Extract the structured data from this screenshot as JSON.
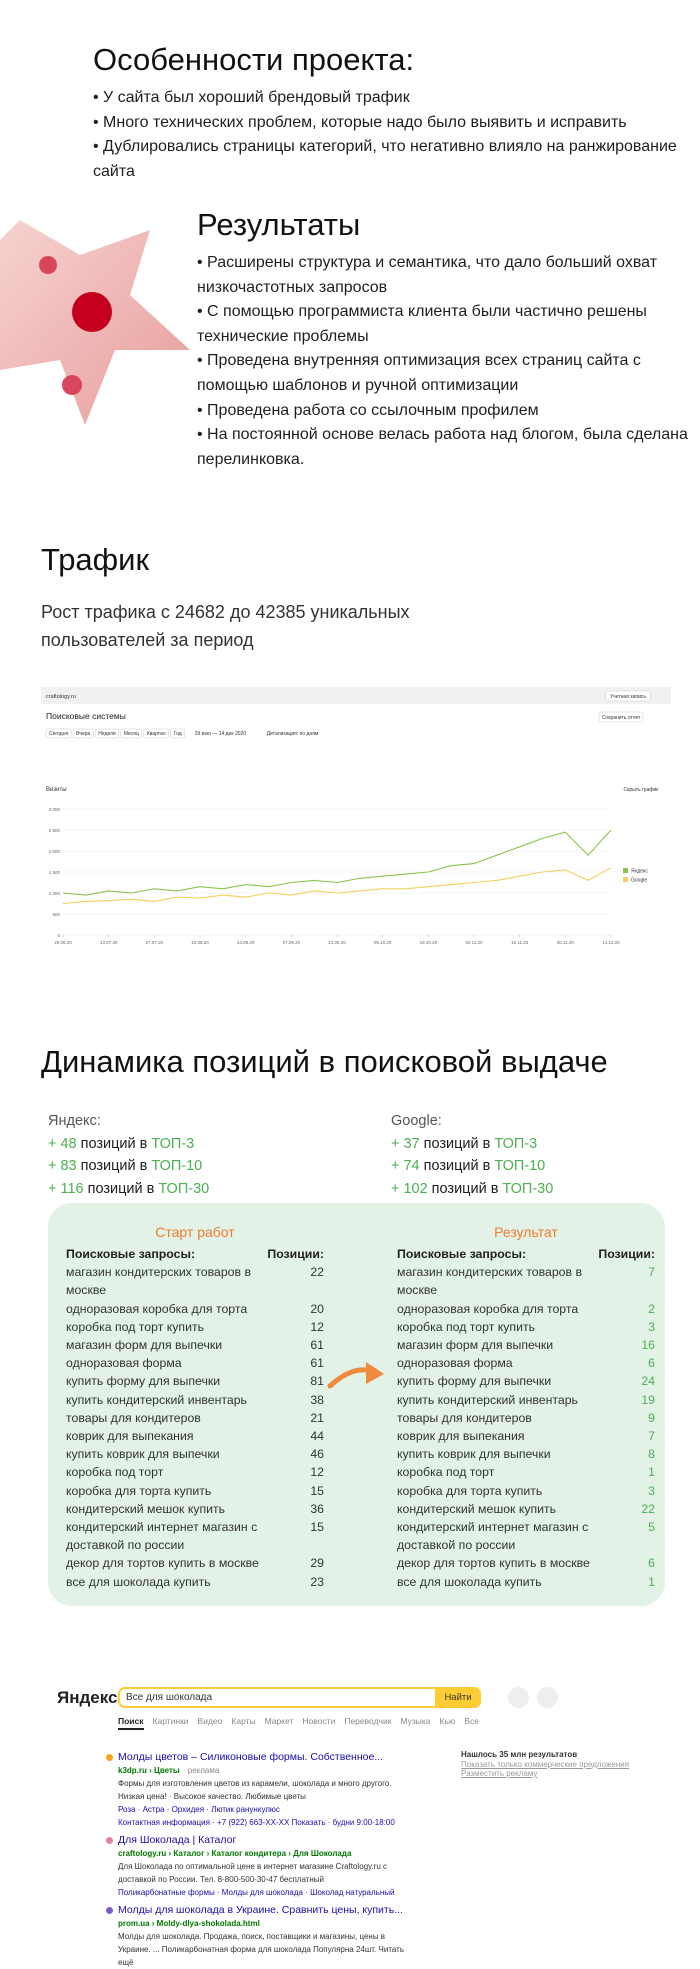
{
  "features": {
    "title": "Особенности проекта:",
    "items": [
      "• У сайта был хороший брендовый трафик",
      "• Много технических проблем, которые надо было выявить и исправить",
      "• Дублировались страницы категорий, что негативно влияло на ранжирование сайта"
    ]
  },
  "results": {
    "title": "Результаты",
    "items": [
      "• Расширены структура и семантика, что дало больший охват низкочастотных запросов",
      "• С помощью программиста клиента были частично решены технические проблемы",
      "• Проведена внутренняя оптимизация всех страниц сайта с помощью шаблонов и ручной оптимизации",
      "• Проведена работа со ссылочным профилем",
      "• На постоянной основе велась работа над блогом, была сделана перелинковка."
    ]
  },
  "traffic": {
    "title": "Трафик",
    "text": "Рост трафика с 24682 до 42385 уникальных пользователей за период"
  },
  "metrica": {
    "site": "craftology.ru",
    "account": "Учетная запись",
    "report": "Поисковые системы",
    "save": "Сохранить отчет",
    "periods": [
      "Сегодня",
      "Вчера",
      "Неделя",
      "Месяц",
      "Квартал",
      "Год"
    ],
    "range": "29 июн — 14 дек 2020",
    "detail": "Детализация: по дням",
    "metric": "Визиты",
    "hide": "Скрыть график",
    "chart_data": {
      "type": "line",
      "x": [
        "29.06.20",
        "06.07.20",
        "13.07.20",
        "20.07.20",
        "27.07.20",
        "03.08.20",
        "10.08.20",
        "17.08.20",
        "24.08.20",
        "31.08.20",
        "07.09.20",
        "14.09.20",
        "21.09.20",
        "28.09.20",
        "05.10.20",
        "12.10.20",
        "19.10.20",
        "26.10.20",
        "02.11.20",
        "09.11.20",
        "16.11.20",
        "23.11.20",
        "30.11.20",
        "07.12.20",
        "14.12.20"
      ],
      "series": [
        {
          "name": "Яндекс",
          "color": "#86c64a",
          "values": [
            1000,
            950,
            1050,
            1000,
            1100,
            1050,
            1150,
            1100,
            1200,
            1150,
            1250,
            1300,
            1250,
            1350,
            1400,
            1450,
            1500,
            1650,
            1700,
            1900,
            2100,
            2300,
            2450,
            1900,
            2500
          ]
        },
        {
          "name": "Google",
          "color": "#f4cf5e",
          "values": [
            750,
            800,
            820,
            850,
            800,
            900,
            880,
            950,
            900,
            1000,
            950,
            1050,
            1000,
            1050,
            1100,
            1100,
            1150,
            1200,
            1250,
            1300,
            1400,
            1500,
            1550,
            1300,
            1600
          ]
        }
      ],
      "ylim": [
        0,
        3000
      ],
      "yticks": [
        0,
        500,
        {
          "value": 1000,
          "label": "1 000"
        },
        {
          "value": 1500,
          "label": "1 500"
        },
        {
          "value": 2000,
          "label": "2 000"
        },
        {
          "value": 2500,
          "label": "2 500"
        },
        {
          "value": 3000,
          "label": "3 000"
        }
      ],
      "grid": true
    }
  },
  "dynamics": {
    "title": "Динамика позиций в поисковой выдаче",
    "engines": [
      {
        "name": "Яндекс:",
        "items": [
          {
            "sign": "+",
            "count": 48,
            "text": "позиций в",
            "top": "ТОП-3"
          },
          {
            "sign": "+",
            "count": 83,
            "text": "позиций в",
            "top": "ТОП-10"
          },
          {
            "sign": "+",
            "count": 116,
            "text": "позиций в",
            "top": "ТОП-30"
          }
        ]
      },
      {
        "name": "Google:",
        "items": [
          {
            "sign": "+",
            "count": 37,
            "text": "позиций в",
            "top": "ТОП-3"
          },
          {
            "sign": "+",
            "count": 74,
            "text": "позиций в",
            "top": "ТОП-10"
          },
          {
            "sign": "+",
            "count": 102,
            "text": "позиций в",
            "top": "ТОП-30"
          }
        ]
      }
    ],
    "table": {
      "start_title": "Старт работ",
      "result_title": "Результат",
      "query_header": "Поисковые запросы:",
      "position_header": "Позиции:",
      "rows": [
        {
          "query": "магазин кондитерских товаров в москве",
          "start": 22,
          "result": 7
        },
        {
          "query": "одноразовая коробка для торта",
          "start": 20,
          "result": 2
        },
        {
          "query": "коробка под торт купить",
          "start": 12,
          "result": 3
        },
        {
          "query": "магазин форм для выпечки",
          "start": 61,
          "result": 16
        },
        {
          "query": "одноразовая форма",
          "start": 61,
          "result": 6
        },
        {
          "query": "купить форму для выпечки",
          "start": 81,
          "result": 24
        },
        {
          "query": "купить кондитерский инвентарь",
          "start": 38,
          "result": 19
        },
        {
          "query": "товары для кондитеров",
          "start": 21,
          "result": 9
        },
        {
          "query": "коврик для выпекания",
          "start": 44,
          "result": 7
        },
        {
          "query": "купить коврик для выпечки",
          "start": 46,
          "result": 8
        },
        {
          "query": "коробка под торт",
          "start": 12,
          "result": 1
        },
        {
          "query": "коробка для торта купить",
          "start": 15,
          "result": 3
        },
        {
          "query": "кондитерский мешок купить",
          "start": 36,
          "result": 22
        },
        {
          "query": "кондитерский интернет магазин с доставкой по россии",
          "start": 15,
          "result": 5
        },
        {
          "query": "декор для тортов купить в москве",
          "start": 29,
          "result": 6
        },
        {
          "query": "все для шоколада купить",
          "start": 23,
          "result": 1
        }
      ]
    }
  },
  "search": {
    "logo": "Яндекс",
    "query": "Все для шоколада",
    "button": "Найти",
    "tabs": [
      "Поиск",
      "Картинки",
      "Видео",
      "Карты",
      "Маркет",
      "Новости",
      "Переводчик",
      "Музыка",
      "Кью",
      "Все"
    ],
    "found": "Нашлось 35 млн результатов",
    "links": [
      "Показать только коммерческие предложения",
      "Разместить рекламу"
    ],
    "results": [
      {
        "title": "Молды цветов – Силиконовые формы. Собственное...",
        "url": "k3dp.ru › Цветы",
        "ad": "реклама",
        "description": "Формы для изготовления цветов из карамели, шоколада и много другого. Низкая цена! · Высокое качество. Любимые цветы",
        "sitelinks": "Роза · Астра · Орхидея · Лютик ранункулюс",
        "contacts": "Контактная информация · +7 (922) 663-XX-XX Показать · будни 9:00-18:00"
      },
      {
        "title": "Для Шоколада | Каталог",
        "url": "craftology.ru › Каталог › Каталог кондитера › Для Шоколада",
        "description": "Для Шоколада по оптимальной цене в интернет магазине Craftology.ru с доставкой по России. Тел. 8-800-500-30-47 бесплатный",
        "sitelinks": "Поликарбонатные формы · Молды для шоколада · Шоколад натуральный"
      },
      {
        "title": "Молды для шоколада в Украине. Сравнить цены, купить...",
        "url": "prom.ua › Moldy-dlya-shokolada.html",
        "description": "Молды для шоколада. Продажа, поиск, поставщики и магазины, цены в Украине. ... Поликарбонатная форма для шоколада Популярна 24шт. Читать ещё"
      }
    ]
  }
}
